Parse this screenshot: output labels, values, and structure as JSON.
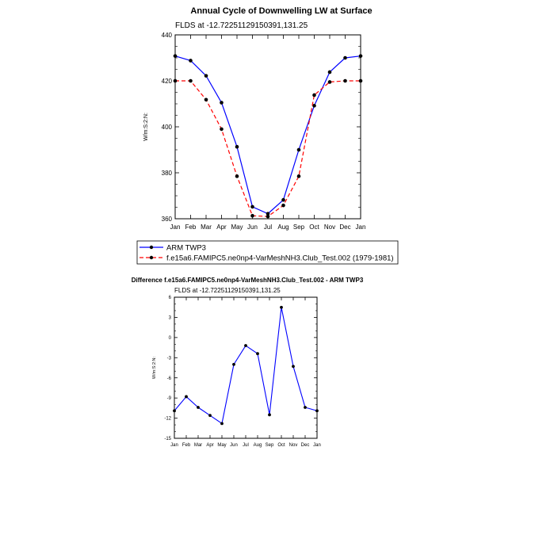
{
  "chart_data": [
    {
      "type": "line",
      "title": "Annual Cycle of Downwelling LW at Surface",
      "subtitle": "FLDS at -12.72251129150391,131.25",
      "xlabel": "",
      "ylabel": "W/m:S:2:N:",
      "categories": [
        "Jan",
        "Feb",
        "Mar",
        "Apr",
        "May",
        "Jun",
        "Jul",
        "Aug",
        "Sep",
        "Oct",
        "Nov",
        "Dec",
        "Jan"
      ],
      "ylim": [
        360,
        440
      ],
      "yticks": [
        360,
        380,
        400,
        420,
        440
      ],
      "legend_position": "bottom",
      "series": [
        {
          "name": "ARM TWP3",
          "color": "#0000ff",
          "dash": "solid",
          "values": [
            430.8,
            428.8,
            422.2,
            410.5,
            391.3,
            365.2,
            362.2,
            368.2,
            390.0,
            409.2,
            423.8,
            430.0,
            430.8
          ]
        },
        {
          "name": "f.e15a6.FAMIPC5.ne0np4-VarMeshNH3.Club_Test.002 (1979-1981)",
          "color": "#ff0000",
          "dash": "dashed",
          "values": [
            420.0,
            420.0,
            411.8,
            399.0,
            378.5,
            361.3,
            361.0,
            365.8,
            378.5,
            413.8,
            419.5,
            420.0,
            420.0
          ]
        }
      ]
    },
    {
      "type": "line",
      "title": "Difference f.e15a6.FAMIPC5.ne0np4-VarMeshNH3.Club_Test.002 - ARM TWP3",
      "subtitle": "FLDS at -12.72251129150391,131.25",
      "xlabel": "",
      "ylabel": "W/m:S:2:N:",
      "categories": [
        "Jan",
        "Feb",
        "Mar",
        "Apr",
        "May",
        "Jun",
        "Jul",
        "Aug",
        "Sep",
        "Oct",
        "Nov",
        "Dec",
        "Jan"
      ],
      "ylim": [
        -15,
        6
      ],
      "yticks": [
        -15,
        -12,
        -9,
        -6,
        -3,
        0,
        3,
        6
      ],
      "series": [
        {
          "name": "Difference",
          "color": "#0000ff",
          "dash": "solid",
          "values": [
            -10.9,
            -8.8,
            -10.4,
            -11.6,
            -12.8,
            -4.0,
            -1.2,
            -2.4,
            -11.5,
            4.5,
            -4.3,
            -10.4,
            -10.9
          ]
        }
      ]
    }
  ]
}
